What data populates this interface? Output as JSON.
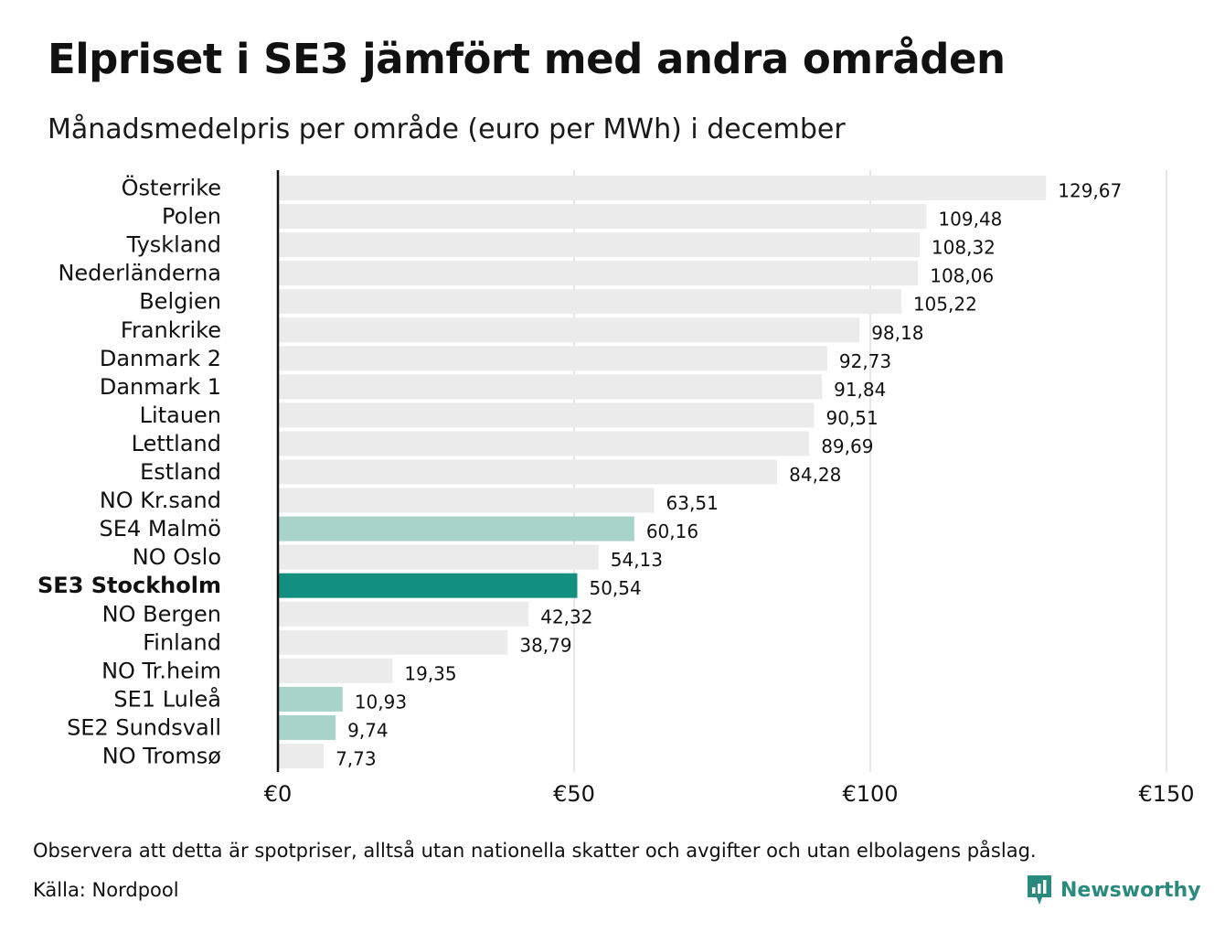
{
  "header": {
    "title": "Elpriset i SE3 jämfört med andra områden",
    "subtitle": "Månadsmedelpris per område (euro per MWh) i december"
  },
  "footer": {
    "note": "Observera att detta är spotpriser, alltså utan nationella skatter och avgifter och utan elbolagens påslag.",
    "source": "Källa: Nordpool",
    "brand": "Newsworthy"
  },
  "colors": {
    "default_bar": "#ebebeb",
    "se_bar": "#a8d3cb",
    "highlight_bar": "#138f80",
    "gridline": "#d6d6d6",
    "axis": "#111111",
    "brand": "#2a8a7e"
  },
  "chart_data": {
    "type": "bar",
    "orientation": "horizontal",
    "title": "Elpriset i SE3 jämfört med andra områden",
    "subtitle": "Månadsmedelpris per område (euro per MWh) i december",
    "categories": [
      "Österrike",
      "Polen",
      "Tyskland",
      "Nederländerna",
      "Belgien",
      "Frankrike",
      "Danmark  2",
      "Danmark  1",
      "Litauen",
      "Lettland",
      "Estland",
      "NO Kr.sand",
      "SE4  Malmö",
      "NO Oslo",
      "SE3 Stockholm",
      "NO Bergen",
      "Finland",
      "NO Tr.heim",
      "SE1  Luleå",
      "SE2  Sundsvall",
      "NO Tromsø"
    ],
    "values": [
      129.67,
      109.48,
      108.32,
      108.06,
      105.22,
      98.18,
      92.73,
      91.84,
      90.51,
      89.69,
      84.28,
      63.51,
      60.16,
      54.13,
      50.54,
      42.32,
      38.79,
      19.35,
      10.93,
      9.74,
      7.73
    ],
    "value_labels": [
      "129,67",
      "109,48",
      "108,32",
      "108,06",
      "105,22",
      "98,18",
      "92,73",
      "91,84",
      "90,51",
      "89,69",
      "84,28",
      "63,51",
      "60,16",
      "54,13",
      "50,54",
      "42,32",
      "38,79",
      "19,35",
      "10,93",
      "9,74",
      "7,73"
    ],
    "bar_roles": [
      "default",
      "default",
      "default",
      "default",
      "default",
      "default",
      "default",
      "default",
      "default",
      "default",
      "default",
      "default",
      "se",
      "default",
      "highlight",
      "default",
      "default",
      "default",
      "se",
      "se",
      "default"
    ],
    "highlight_category": "SE3 Stockholm",
    "xlim": [
      0,
      150
    ],
    "xticks": [
      0,
      50,
      100,
      150
    ],
    "xtick_labels": [
      "€0",
      "€50",
      "€100",
      "€150"
    ],
    "grid": true,
    "legend": "none"
  }
}
